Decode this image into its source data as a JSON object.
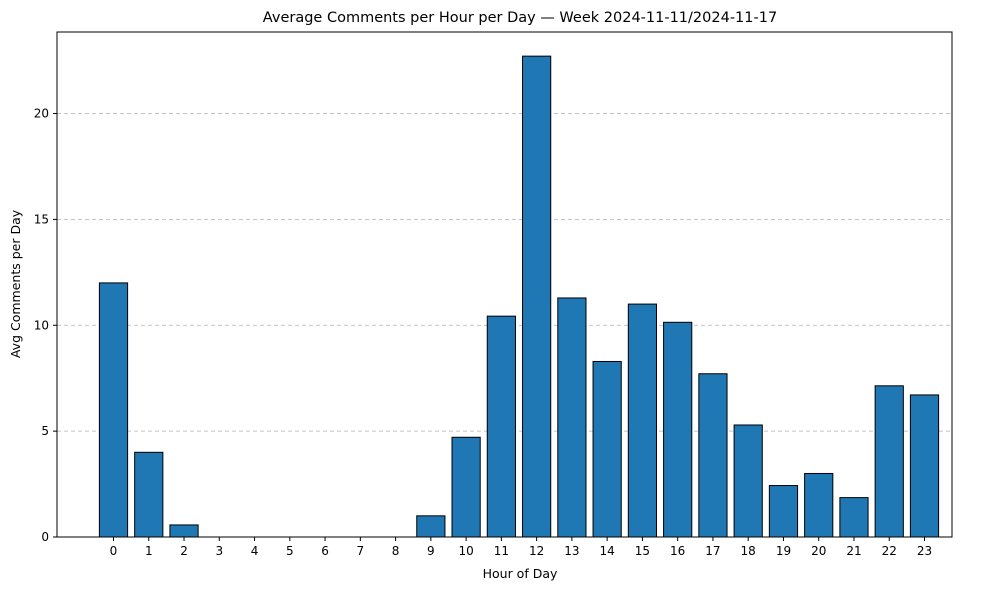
{
  "chart_data": {
    "type": "bar",
    "title": "Average Comments per Hour per Day — Week 2024-11-11/2024-11-17",
    "xlabel": "Hour of Day",
    "ylabel": "Avg Comments per Day",
    "categories": [
      "0",
      "1",
      "2",
      "3",
      "4",
      "5",
      "6",
      "7",
      "8",
      "9",
      "10",
      "11",
      "12",
      "13",
      "14",
      "15",
      "16",
      "17",
      "18",
      "19",
      "20",
      "21",
      "22",
      "23"
    ],
    "values": [
      12.0,
      4.0,
      0.57,
      0,
      0,
      0,
      0,
      0,
      0,
      1.0,
      4.71,
      10.43,
      22.71,
      11.29,
      8.29,
      11.0,
      10.14,
      7.71,
      5.29,
      2.43,
      3.0,
      1.86,
      7.14,
      6.71
    ],
    "ylim": [
      0,
      23.85
    ],
    "yticks": [
      "0",
      "5",
      "10",
      "15",
      "20"
    ],
    "grid": "y-dashed",
    "bar_color": "#1f77b4",
    "edge_color": "#000000"
  }
}
